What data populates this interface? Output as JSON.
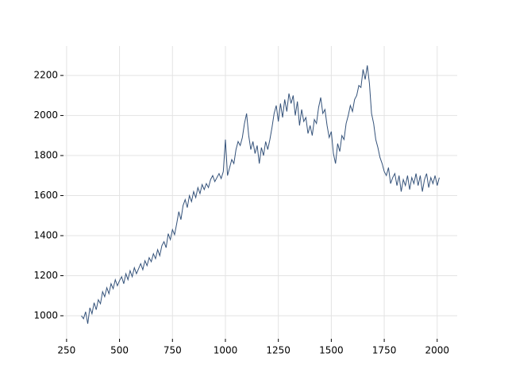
{
  "chart_data": {
    "type": "line",
    "color": "#34527a",
    "grid": true,
    "xlim": [
      235.5,
      2094.5
    ],
    "ylim": [
      885,
      2347
    ],
    "xticks": [
      250,
      500,
      750,
      1000,
      1250,
      1500,
      1750,
      2000
    ],
    "yticks": [
      1000,
      1200,
      1400,
      1600,
      1800,
      2000,
      2200
    ],
    "x": [
      320,
      330,
      340,
      350,
      360,
      370,
      380,
      390,
      400,
      410,
      420,
      430,
      440,
      450,
      460,
      470,
      480,
      490,
      500,
      510,
      520,
      530,
      540,
      550,
      560,
      570,
      580,
      590,
      600,
      610,
      620,
      630,
      640,
      650,
      660,
      670,
      680,
      690,
      700,
      710,
      720,
      730,
      740,
      750,
      760,
      770,
      780,
      790,
      800,
      810,
      820,
      830,
      840,
      850,
      860,
      870,
      880,
      890,
      900,
      910,
      920,
      930,
      940,
      950,
      960,
      970,
      980,
      990,
      1000,
      1010,
      1020,
      1030,
      1040,
      1050,
      1060,
      1070,
      1080,
      1090,
      1100,
      1110,
      1120,
      1130,
      1140,
      1150,
      1160,
      1170,
      1180,
      1190,
      1200,
      1210,
      1220,
      1230,
      1240,
      1250,
      1260,
      1270,
      1280,
      1290,
      1300,
      1310,
      1320,
      1330,
      1340,
      1350,
      1360,
      1370,
      1380,
      1390,
      1400,
      1410,
      1420,
      1430,
      1440,
      1450,
      1460,
      1470,
      1480,
      1490,
      1500,
      1510,
      1520,
      1530,
      1540,
      1550,
      1560,
      1570,
      1580,
      1590,
      1600,
      1610,
      1620,
      1630,
      1640,
      1650,
      1660,
      1670,
      1680,
      1690,
      1700,
      1710,
      1720,
      1730,
      1740,
      1750,
      1760,
      1770,
      1780,
      1790,
      1800,
      1810,
      1820,
      1830,
      1840,
      1850,
      1860,
      1870,
      1880,
      1890,
      1900,
      1910,
      1920,
      1930,
      1940,
      1950,
      1960,
      1970,
      1980,
      1990,
      2000,
      2010
    ],
    "values": [
      1000,
      985,
      1020,
      960,
      1040,
      1010,
      1065,
      1030,
      1080,
      1060,
      1120,
      1095,
      1140,
      1110,
      1160,
      1135,
      1180,
      1150,
      1175,
      1195,
      1160,
      1210,
      1180,
      1225,
      1195,
      1240,
      1210,
      1235,
      1260,
      1230,
      1275,
      1250,
      1290,
      1270,
      1310,
      1285,
      1330,
      1300,
      1350,
      1370,
      1340,
      1410,
      1380,
      1430,
      1405,
      1460,
      1520,
      1480,
      1550,
      1580,
      1540,
      1600,
      1570,
      1620,
      1590,
      1640,
      1610,
      1655,
      1630,
      1660,
      1640,
      1680,
      1700,
      1670,
      1690,
      1710,
      1685,
      1720,
      1880,
      1700,
      1740,
      1780,
      1760,
      1830,
      1870,
      1850,
      1890,
      1960,
      2010,
      1900,
      1830,
      1870,
      1810,
      1850,
      1760,
      1840,
      1800,
      1870,
      1830,
      1880,
      1940,
      2010,
      2050,
      1970,
      2060,
      1990,
      2080,
      2020,
      2110,
      2060,
      2100,
      2000,
      2070,
      1950,
      2030,
      1970,
      1990,
      1910,
      1950,
      1900,
      1980,
      1960,
      2040,
      2090,
      2010,
      2030,
      1950,
      1890,
      1920,
      1810,
      1760,
      1860,
      1820,
      1900,
      1880,
      1960,
      2000,
      2050,
      2020,
      2080,
      2100,
      2150,
      2140,
      2230,
      2180,
      2250,
      2160,
      2010,
      1960,
      1880,
      1840,
      1790,
      1760,
      1720,
      1700,
      1740,
      1660,
      1690,
      1710,
      1650,
      1700,
      1620,
      1680,
      1650,
      1700,
      1630,
      1690,
      1660,
      1710,
      1650,
      1700,
      1620,
      1680,
      1710,
      1640,
      1690,
      1660,
      1700,
      1650,
      1690
    ]
  }
}
